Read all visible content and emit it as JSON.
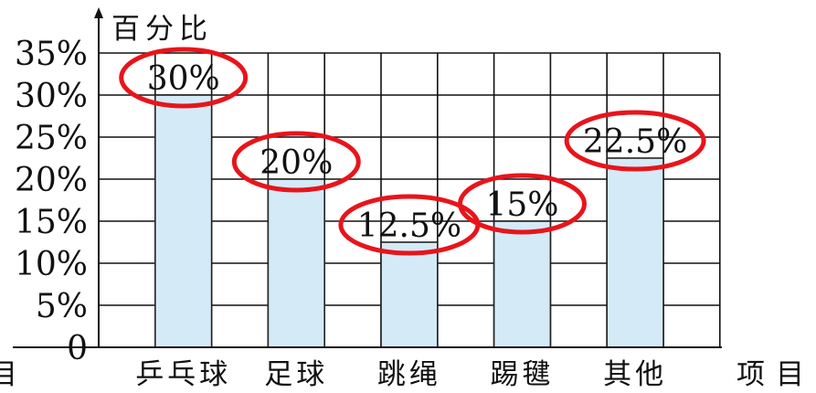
{
  "chart_data": {
    "type": "bar",
    "ylabel": "百分比",
    "xlabel": "项目",
    "ylim": [
      0,
      35
    ],
    "yticks": [
      "0",
      "5%",
      "10%",
      "15%",
      "20%",
      "25%",
      "30%",
      "35%"
    ],
    "categories": [
      "乒乓球",
      "足球",
      "跳绳",
      "踢毽",
      "其他"
    ],
    "values": [
      30,
      20,
      12.5,
      15,
      22.5
    ],
    "data_labels": [
      "30%",
      "20%",
      "12.5%",
      "15%",
      "22.5%"
    ],
    "grid": true,
    "colors": {
      "bar_fill": "#d4eaf7",
      "bar_stroke": "#222222",
      "grid": "#111111",
      "highlight": "#e8141b"
    },
    "annotations": "red ellipses circle each data label"
  },
  "margin_note": "目"
}
